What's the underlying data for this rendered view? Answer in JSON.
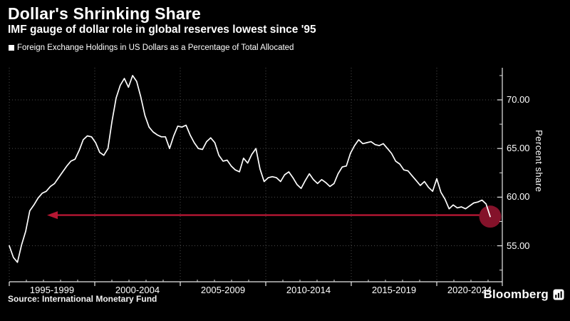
{
  "header": {
    "title": "Dollar's Shrinking Share",
    "subtitle": "IMF gauge of dollar role in global reserves lowest since '95"
  },
  "legend": {
    "label": "Foreign Exchange Holdings in US Dollars as a Percentage of Total Allocated"
  },
  "source": "Source: International Monetary Fund",
  "branding": {
    "name": "Bloomberg",
    "icon": "bloomberg-terminal-icon"
  },
  "colors": {
    "background": "#000000",
    "line": "#ffffff",
    "arrow": "#b61733",
    "dot": "#84122a",
    "grid": "#4c4c4c",
    "axis": "#e8e8e8",
    "text": "#ffffff"
  },
  "chart_data": {
    "type": "line",
    "title": "Dollar's Shrinking Share",
    "subtitle": "IMF gauge of dollar role in global reserves lowest since '95",
    "xlabel": "",
    "ylabel": "Percent share",
    "ylim": [
      51.3,
      73.3
    ],
    "grid": true,
    "legend_position": "top-left",
    "x_categories": [
      "1995-1999",
      "2000-2004",
      "2005-2009",
      "2010-2014",
      "2015-2019",
      "2020-2024"
    ],
    "x_period": "quarterly",
    "x_range": [
      "1995",
      "2024"
    ],
    "y_tick_labels": [
      "55.00",
      "60.00",
      "65.00",
      "70.00"
    ],
    "y_tick_values": [
      55,
      60,
      65,
      70
    ],
    "y_minor_tick_values": [
      52.5,
      57.5,
      62.5,
      67.5,
      72.5
    ],
    "series": [
      {
        "name": "Foreign Exchange Holdings in US Dollars as a Percentage of Total Allocated",
        "values": [
          55.0,
          53.8,
          53.3,
          55.1,
          56.5,
          58.6,
          59.2,
          59.9,
          60.4,
          60.6,
          61.1,
          61.4,
          62.0,
          62.6,
          63.2,
          63.7,
          63.9,
          64.8,
          65.9,
          66.3,
          66.2,
          65.6,
          64.6,
          64.3,
          65.0,
          67.8,
          70.2,
          71.5,
          72.2,
          71.3,
          72.5,
          71.9,
          70.3,
          68.4,
          67.2,
          66.7,
          66.4,
          66.2,
          66.2,
          65.0,
          66.3,
          67.3,
          67.2,
          67.4,
          66.4,
          65.6,
          65.0,
          64.9,
          65.7,
          66.1,
          65.6,
          64.3,
          63.7,
          63.8,
          63.2,
          62.8,
          62.6,
          64.0,
          63.5,
          64.4,
          65.0,
          62.9,
          61.6,
          62.0,
          62.1,
          62.0,
          61.6,
          62.3,
          62.6,
          62.0,
          61.3,
          60.9,
          61.7,
          62.4,
          61.8,
          61.4,
          61.8,
          61.5,
          61.1,
          61.4,
          62.4,
          63.1,
          63.2,
          64.5,
          65.3,
          65.9,
          65.5,
          65.6,
          65.7,
          65.4,
          65.3,
          65.5,
          65.0,
          64.5,
          63.7,
          63.4,
          62.8,
          62.7,
          62.2,
          61.7,
          61.2,
          61.6,
          61.0,
          60.6,
          61.9,
          60.5,
          59.8,
          58.8,
          59.2,
          58.9,
          59.0,
          58.8,
          59.1,
          59.4,
          59.5,
          59.7,
          59.3,
          58.0
        ]
      }
    ],
    "annotation": {
      "last_value": 58.0,
      "arrow_level": 58.15,
      "dot_radius": 15.5,
      "dot_color": "#84122a",
      "arrow_color": "#b61733"
    }
  }
}
